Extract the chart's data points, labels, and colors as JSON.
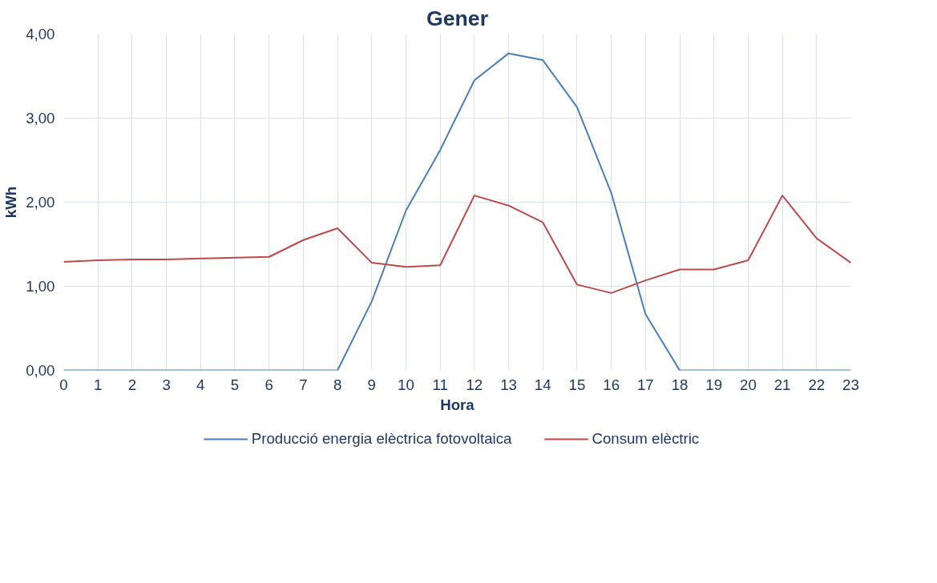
{
  "chart_data": {
    "type": "line",
    "title": "Gener",
    "xlabel": "Hora",
    "ylabel": "kWh",
    "x": [
      0,
      1,
      2,
      3,
      4,
      5,
      6,
      7,
      8,
      9,
      10,
      11,
      12,
      13,
      14,
      15,
      16,
      17,
      18,
      19,
      20,
      21,
      22,
      23
    ],
    "series": [
      {
        "name": "Producció energia elèctrica fotovoltaica",
        "color": "#4a7ebb",
        "values": [
          0,
          0,
          0,
          0,
          0,
          0,
          0,
          0,
          0,
          0.82,
          1.9,
          2.62,
          3.45,
          3.77,
          3.69,
          3.13,
          2.11,
          0.67,
          0,
          0,
          0,
          0,
          0,
          0
        ]
      },
      {
        "name": "Consum elèctric",
        "color": "#be4b48",
        "values": [
          1.29,
          1.31,
          1.32,
          1.32,
          1.33,
          1.34,
          1.35,
          1.55,
          1.69,
          1.28,
          1.23,
          1.25,
          2.08,
          1.96,
          1.76,
          1.02,
          0.92,
          1.07,
          1.2,
          1.2,
          1.31,
          2.08,
          1.57,
          1.28
        ]
      }
    ],
    "xlim": [
      0,
      23
    ],
    "xticks": [
      0,
      1,
      2,
      3,
      4,
      5,
      6,
      7,
      8,
      9,
      10,
      11,
      12,
      13,
      14,
      15,
      16,
      17,
      18,
      19,
      20,
      21,
      22,
      23
    ],
    "ylim": [
      0,
      4
    ],
    "yticks": [
      {
        "value": 0,
        "label": "0,00"
      },
      {
        "value": 1,
        "label": "1,00"
      },
      {
        "value": 2,
        "label": "2,00"
      },
      {
        "value": 3,
        "label": "3,00"
      },
      {
        "value": 4,
        "label": "4,00"
      }
    ],
    "grid": true,
    "legend": "bottom",
    "marker": "none",
    "line_style": "solid"
  }
}
